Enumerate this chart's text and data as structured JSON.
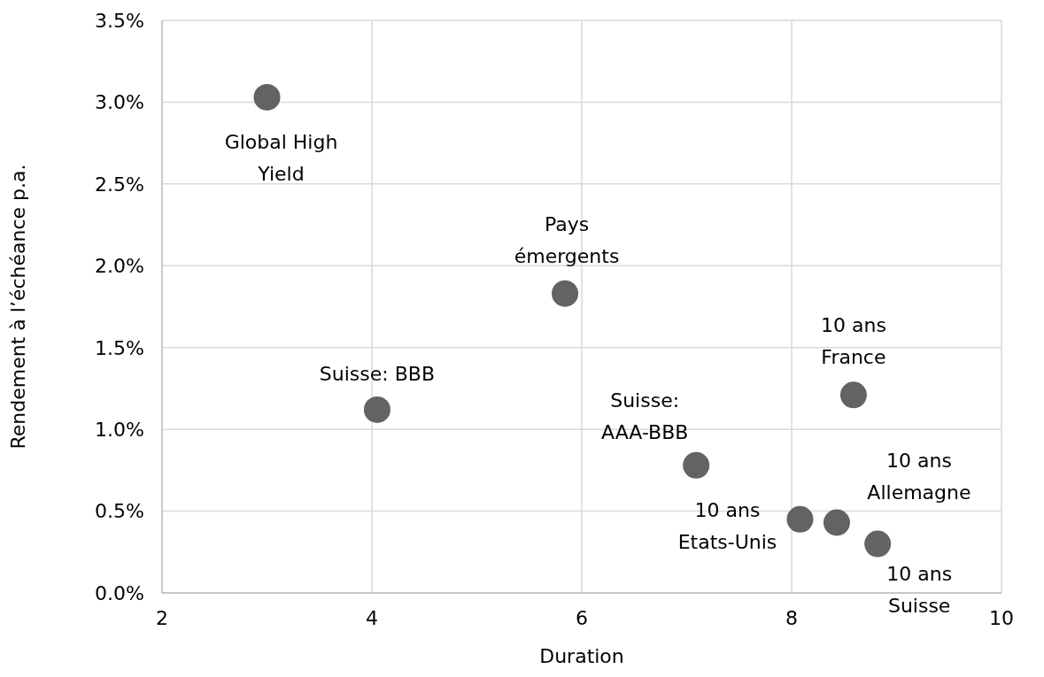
{
  "chart_data": {
    "type": "scatter",
    "x": [
      3.0,
      4.05,
      5.84,
      7.09,
      8.08,
      8.43,
      8.59,
      8.82
    ],
    "values": [
      3.03,
      1.12,
      1.83,
      0.78,
      0.45,
      0.43,
      1.21,
      0.3
    ],
    "color": "#636363",
    "marker": "circle",
    "xlim": [
      2,
      10
    ],
    "xticks": [
      2,
      4,
      6,
      8,
      10
    ],
    "ylim": [
      0,
      3.5
    ],
    "yticks": [
      {
        "value": 0,
        "label": "0.0%"
      },
      {
        "value": 0.5,
        "label": "0.5%"
      },
      {
        "value": 1,
        "label": "1.0%"
      },
      {
        "value": 1.5,
        "label": "1.5%"
      },
      {
        "value": 2,
        "label": "2.0%"
      },
      {
        "value": 2.5,
        "label": "2.5%"
      },
      {
        "value": 3,
        "label": "3.0%"
      },
      {
        "value": 3.5,
        "label": "3.5%"
      }
    ],
    "xlabel": "Duration",
    "ylabel": "Rendement à l’échéance p.a.",
    "grid": true,
    "annotations": [
      {
        "text": "Global High Yield",
        "x": 3.0,
        "y": 3.03
      },
      {
        "text": "Suisse: BBB",
        "x": 4.05,
        "y": 1.12
      },
      {
        "text": "Pays émergents",
        "x": 5.84,
        "y": 1.83
      },
      {
        "text": "Suisse: AAA-BBB",
        "x": 7.09,
        "y": 0.78
      },
      {
        "text": "10 ans Etats-Unis",
        "x": 8.08,
        "y": 0.45
      },
      {
        "text": "10 ans Allemagne",
        "x": 8.43,
        "y": 0.43
      },
      {
        "text": "10 ans France",
        "x": 8.59,
        "y": 1.21
      },
      {
        "text": "10 ans Suisse",
        "x": 8.82,
        "y": 0.3
      }
    ]
  }
}
